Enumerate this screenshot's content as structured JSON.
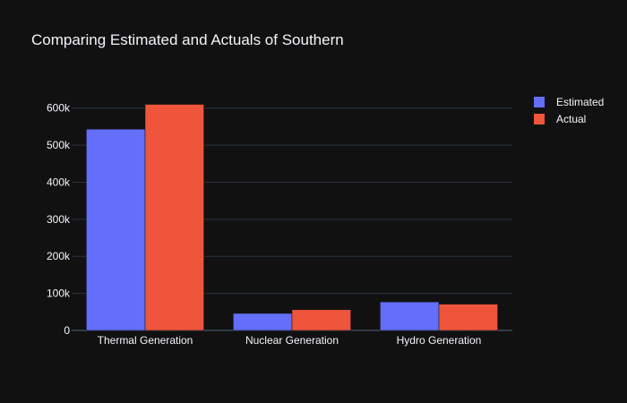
{
  "chart_data": {
    "type": "bar",
    "title": "Comparing Estimated and Actuals of Southern",
    "categories": [
      "Thermal Generation",
      "Nuclear Generation",
      "Hydro Generation"
    ],
    "series": [
      {
        "name": "Estimated",
        "values": [
          543000,
          46000,
          77000
        ],
        "color": "#636efa"
      },
      {
        "name": "Actual",
        "values": [
          610000,
          56000,
          71000
        ],
        "color": "#ef553b"
      }
    ],
    "xlabel": "",
    "ylabel": "",
    "ylim": [
      0,
      650000
    ],
    "yticks": [
      {
        "value": 0,
        "label": "0"
      },
      {
        "value": 100000,
        "label": "100k"
      },
      {
        "value": 200000,
        "label": "200k"
      },
      {
        "value": 300000,
        "label": "300k"
      },
      {
        "value": 400000,
        "label": "400k"
      },
      {
        "value": 500000,
        "label": "500k"
      },
      {
        "value": 600000,
        "label": "600k"
      }
    ],
    "grid": true,
    "legend_position": "top-right",
    "background": "#111111",
    "grid_color": "#283442"
  }
}
